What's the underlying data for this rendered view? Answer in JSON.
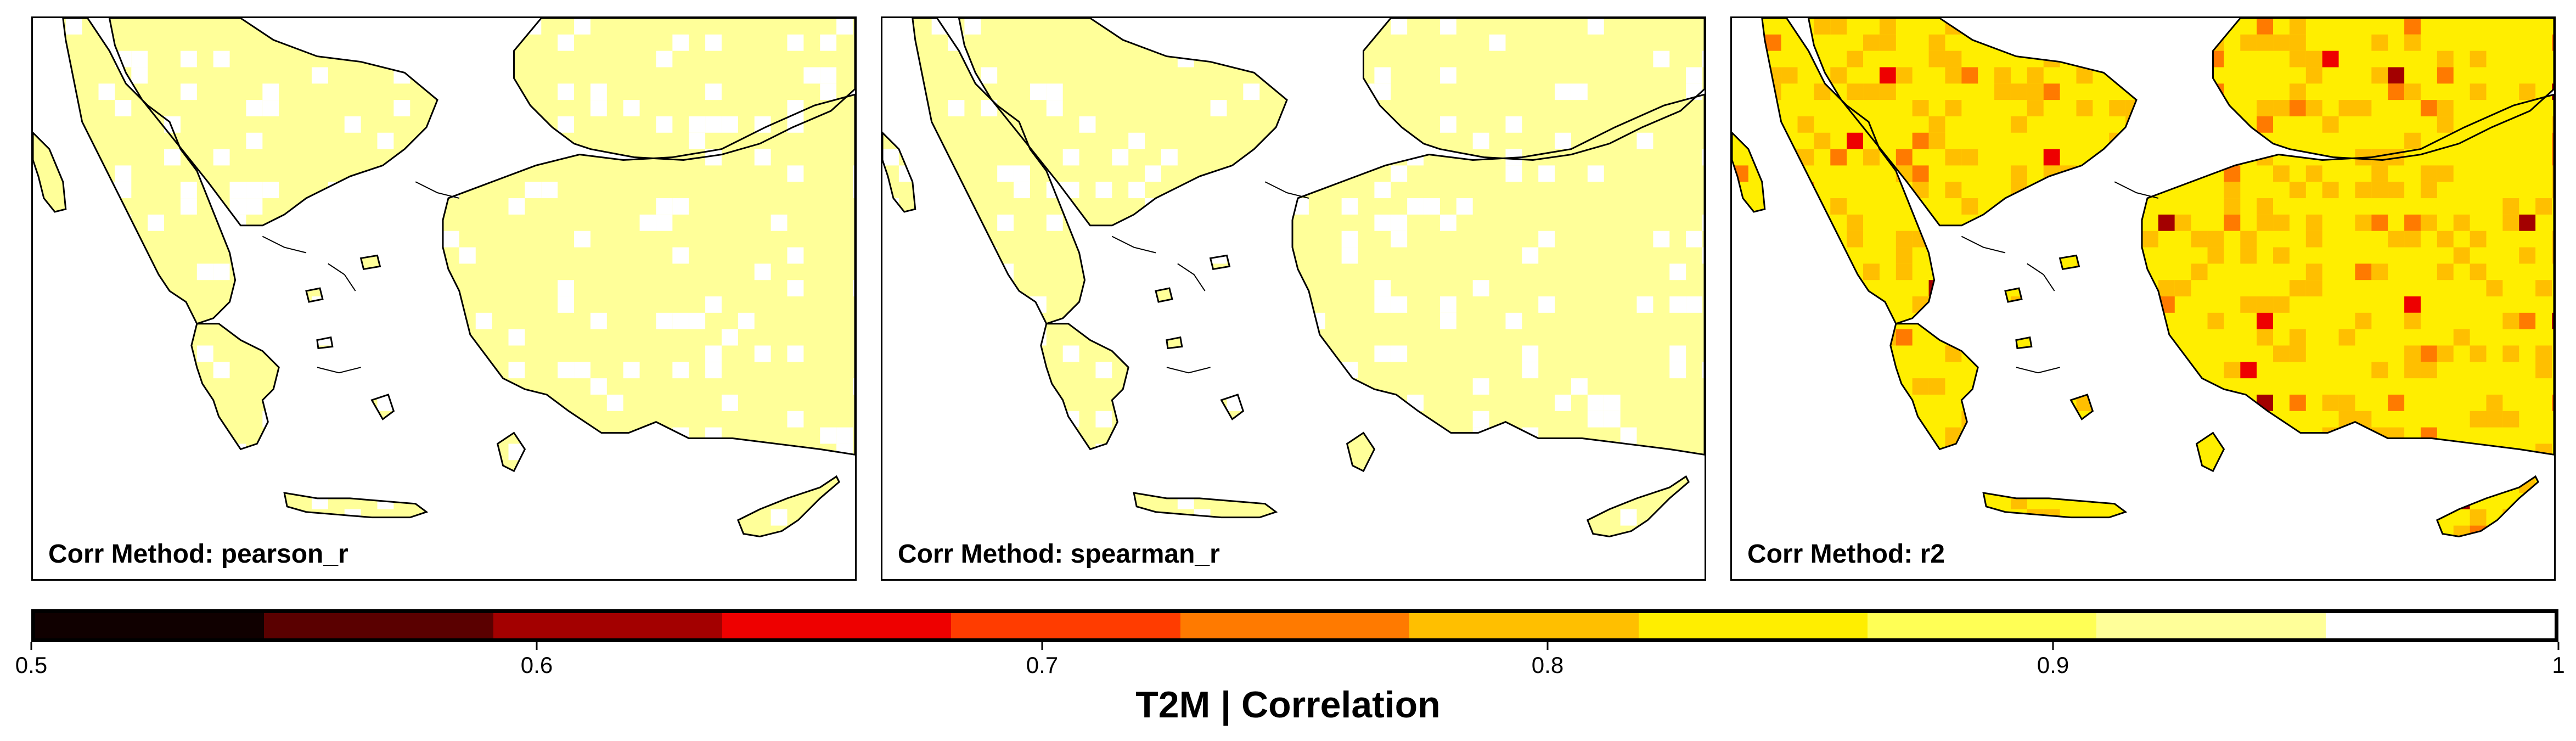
{
  "colorbar": {
    "title": "T2M | Correlation",
    "min": 0.5,
    "max": 1,
    "colors": [
      "#100000",
      "#5a0000",
      "#a30000",
      "#ee0000",
      "#ff3c00",
      "#ff7a00",
      "#ffbf00",
      "#ffee00",
      "#ffff55",
      "#ffff99",
      "#ffffff"
    ],
    "ticks": [
      "0.5",
      "0.6",
      "0.7",
      "0.8",
      "0.9",
      "1"
    ]
  },
  "panels": [
    {
      "label": "Corr Method: pearson_r",
      "field_level": "0.95-1.0",
      "fill_color": "#ffff99",
      "stat_color": "#ffffff"
    },
    {
      "label": "Corr Method: spearman_r",
      "field_level": "0.95-1.0",
      "fill_color": "#ffff99",
      "stat_color": "#ffffff"
    },
    {
      "label": "Corr Method: r2",
      "field_level": "0.85-0.95",
      "fill_color": "#ffee00",
      "stat_color": "#ffbf00"
    }
  ]
}
